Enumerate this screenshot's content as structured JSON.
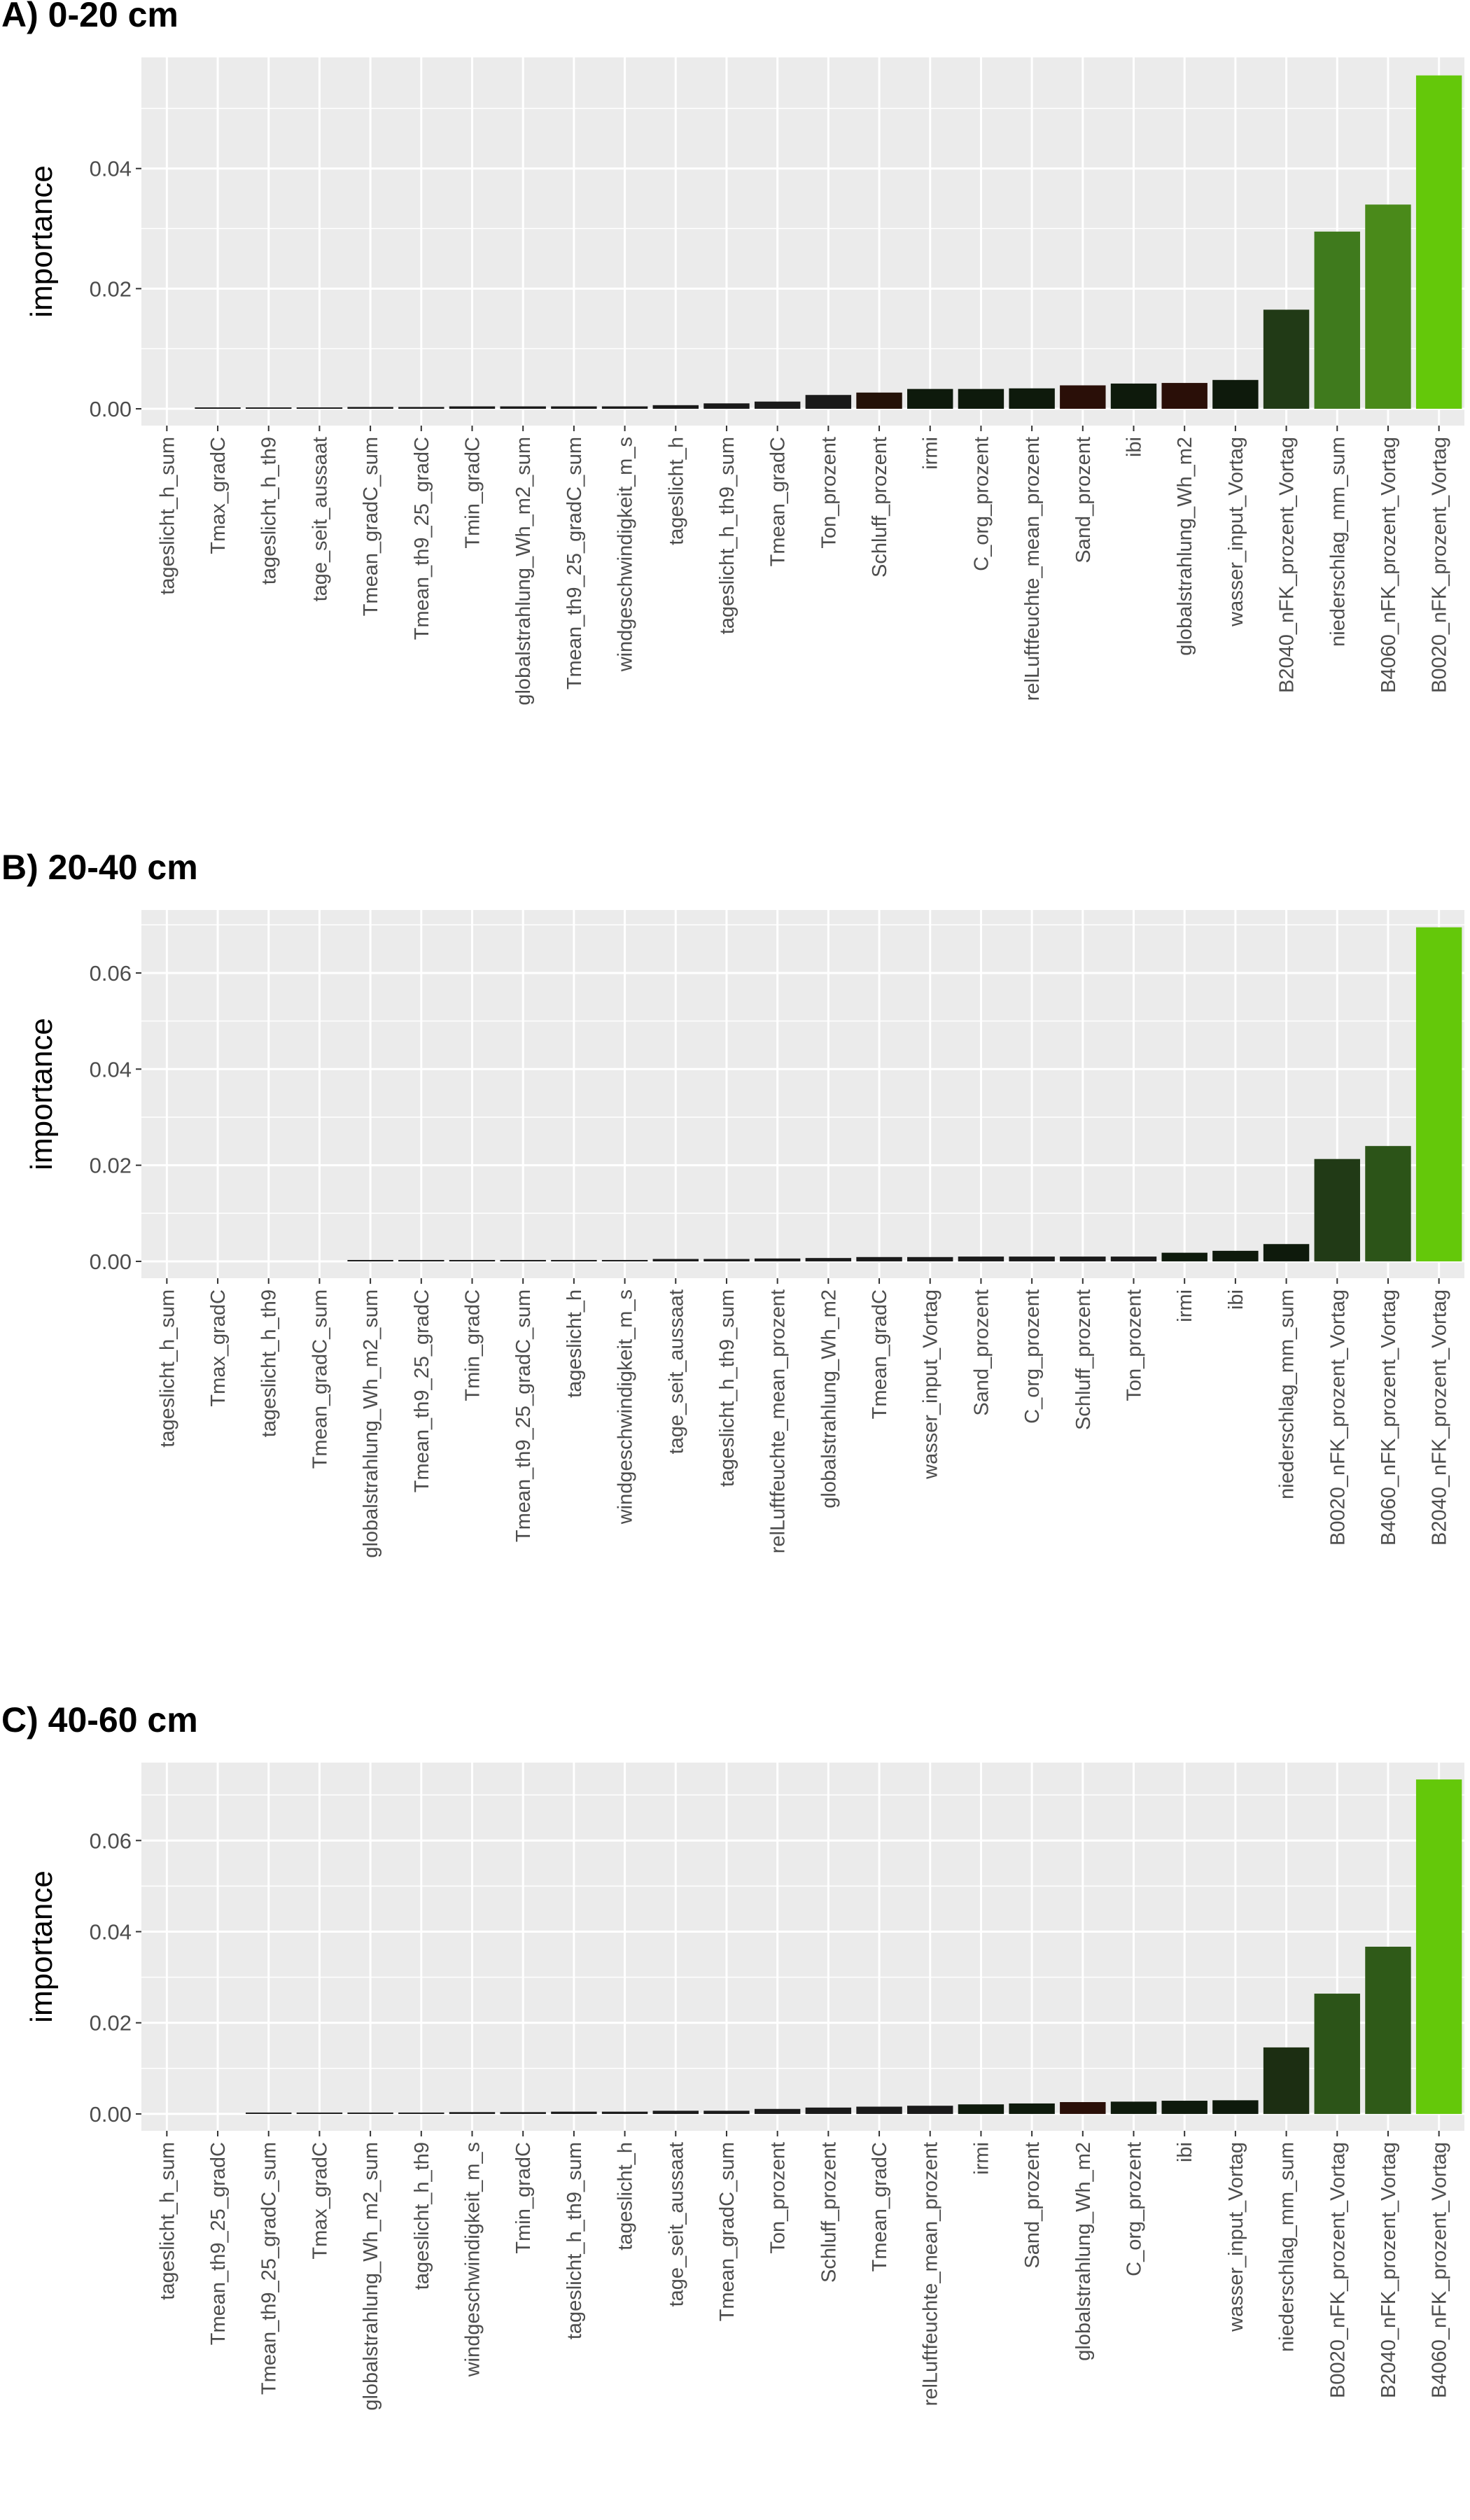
{
  "chart_data": [
    {
      "type": "bar",
      "title": "A) 0-20 cm",
      "xlabel": "",
      "ylabel": "importance",
      "yticks": [
        0.0,
        0.02,
        0.04
      ],
      "ytick_labels": [
        "0.00",
        "0.02",
        "0.04"
      ],
      "ylim": [
        -0.0028,
        0.0585
      ],
      "grid": true,
      "categories": [
        "tageslicht_h_sum",
        "Tmax_gradC",
        "tageslicht_h_th9",
        "tage_seit_aussaat",
        "Tmean_gradC_sum",
        "Tmean_th9_25_gradC",
        "Tmin_gradC",
        "globalstrahlung_Wh_m2_sum",
        "Tmean_th9_25_gradC_sum",
        "windgeschwindigkeit_m_s",
        "tageslicht_h",
        "tageslicht_h_th9_sum",
        "Tmean_gradC",
        "Ton_prozent",
        "Schluff_prozent",
        "irmi",
        "C_org_prozent",
        "relLuftfeuchte_mean_prozent",
        "Sand_prozent",
        "ibi",
        "globalstrahlung_Wh_m2",
        "wasser_input_Vortag",
        "B2040_nFK_prozent_Vortag",
        "niederschlag_mm_sum",
        "B4060_nFK_prozent_Vortag",
        "B0020_nFK_prozent_Vortag"
      ],
      "values": [
        0.0,
        0.0002,
        0.0002,
        0.0002,
        0.0003,
        0.0003,
        0.0004,
        0.0004,
        0.0004,
        0.0004,
        0.0006,
        0.0009,
        0.0012,
        0.0023,
        0.0027,
        0.0033,
        0.0033,
        0.0034,
        0.0039,
        0.0042,
        0.0043,
        0.0048,
        0.0165,
        0.0295,
        0.034,
        0.0555
      ],
      "colors": [
        "#1a1a1a",
        "#1a1a1a",
        "#1a1a1a",
        "#1a1a1a",
        "#1a1a1a",
        "#1a1a1a",
        "#1a1a1a",
        "#1a1a1a",
        "#1a1a1a",
        "#1a1a1a",
        "#1a1a1a",
        "#1a1a1a",
        "#1a1a1a",
        "#1a1a1a",
        "#241208",
        "#0e1a0c",
        "#0e1a0c",
        "#0e1a0c",
        "#2a0f08",
        "#0e1a0c",
        "#2a0f08",
        "#0e1a0c",
        "#213a16",
        "#3f7a1d",
        "#4a8a1a",
        "#64c80a"
      ]
    },
    {
      "type": "bar",
      "title": "B) 20-40 cm",
      "xlabel": "",
      "ylabel": "importance",
      "yticks": [
        0.0,
        0.02,
        0.04,
        0.06
      ],
      "ytick_labels": [
        "0.00",
        "0.02",
        "0.04",
        "0.06"
      ],
      "ylim": [
        -0.0035,
        0.0731
      ],
      "grid": true,
      "categories": [
        "tageslicht_h_sum",
        "Tmax_gradC",
        "tageslicht_h_th9",
        "Tmean_gradC_sum",
        "globalstrahlung_Wh_m2_sum",
        "Tmean_th9_25_gradC",
        "Tmin_gradC",
        "Tmean_th9_25_gradC_sum",
        "tageslicht_h",
        "windgeschwindigkeit_m_s",
        "tage_seit_aussaat",
        "tageslicht_h_th9_sum",
        "relLuftfeuchte_mean_prozent",
        "globalstrahlung_Wh_m2",
        "Tmean_gradC",
        "wasser_input_Vortag",
        "Sand_prozent",
        "C_org_prozent",
        "Schluff_prozent",
        "Ton_prozent",
        "irmi",
        "ibi",
        "niederschlag_mm_sum",
        "B0020_nFK_prozent_Vortag",
        "B4060_nFK_prozent_Vortag",
        "B2040_nFK_prozent_Vortag"
      ],
      "values": [
        0.0,
        0.0,
        0.0,
        0.0,
        0.0002,
        0.0002,
        0.0002,
        0.0002,
        0.0002,
        0.0002,
        0.0005,
        0.0005,
        0.0006,
        0.0007,
        0.0009,
        0.0009,
        0.001,
        0.001,
        0.001,
        0.001,
        0.0018,
        0.0022,
        0.0036,
        0.0213,
        0.024,
        0.0695
      ],
      "colors": [
        "#1a1a1a",
        "#1a1a1a",
        "#1a1a1a",
        "#1a1a1a",
        "#1a1a1a",
        "#1a1a1a",
        "#1a1a1a",
        "#1a1a1a",
        "#1a1a1a",
        "#1a1a1a",
        "#1a1a1a",
        "#1a1a1a",
        "#1a1a1a",
        "#1a1a1a",
        "#1a1a1a",
        "#1a1a1a",
        "#1a1a1a",
        "#1a1a1a",
        "#1a1a1a",
        "#1a1a1a",
        "#0e1a0c",
        "#0e1a0c",
        "#0e1a0c",
        "#213a16",
        "#2c5418",
        "#64c80a"
      ]
    },
    {
      "type": "bar",
      "title": "C) 40-60 cm",
      "xlabel": "",
      "ylabel": "importance",
      "yticks": [
        0.0,
        0.02,
        0.04,
        0.06
      ],
      "ytick_labels": [
        "0.00",
        "0.02",
        "0.04",
        "0.06"
      ],
      "ylim": [
        -0.0037,
        0.0771
      ],
      "grid": true,
      "categories": [
        "tageslicht_h_sum",
        "Tmean_th9_25_gradC",
        "Tmean_th9_25_gradC_sum",
        "Tmax_gradC",
        "globalstrahlung_Wh_m2_sum",
        "tageslicht_h_th9",
        "windgeschwindigkeit_m_s",
        "Tmin_gradC",
        "tageslicht_h_th9_sum",
        "tageslicht_h",
        "tage_seit_aussaat",
        "Tmean_gradC_sum",
        "Ton_prozent",
        "Schluff_prozent",
        "Tmean_gradC",
        "relLuftfeuchte_mean_prozent",
        "irmi",
        "Sand_prozent",
        "globalstrahlung_Wh_m2",
        "C_org_prozent",
        "ibi",
        "wasser_input_Vortag",
        "niederschlag_mm_sum",
        "B0020_nFK_prozent_Vortag",
        "B2040_nFK_prozent_Vortag",
        "B4060_nFK_prozent_Vortag"
      ],
      "values": [
        0.0,
        0.0,
        0.0003,
        0.0003,
        0.0003,
        0.0003,
        0.0004,
        0.0004,
        0.0005,
        0.0005,
        0.0007,
        0.0007,
        0.0011,
        0.0014,
        0.0016,
        0.0018,
        0.0021,
        0.0023,
        0.0026,
        0.0027,
        0.0029,
        0.003,
        0.0146,
        0.0264,
        0.0367,
        0.0734
      ],
      "colors": [
        "#1a1a1a",
        "#1a1a1a",
        "#1a1a1a",
        "#1a1a1a",
        "#1a1a1a",
        "#1a1a1a",
        "#1a1a1a",
        "#1a1a1a",
        "#1a1a1a",
        "#1a1a1a",
        "#1a1a1a",
        "#1a1a1a",
        "#1a1a1a",
        "#1a1a1a",
        "#1a1a1a",
        "#1a1a1a",
        "#0e1a0c",
        "#0e1a0c",
        "#2a0f08",
        "#0e1a0c",
        "#0e1a0c",
        "#0e1a0c",
        "#1c2e12",
        "#2c5418",
        "#2f5a18",
        "#64c80a"
      ]
    }
  ],
  "colors": {
    "panel_background": "#ebebeb",
    "grid_line": "#ffffff",
    "tick_text": "#4d4d4d",
    "title_text": "#000000"
  }
}
